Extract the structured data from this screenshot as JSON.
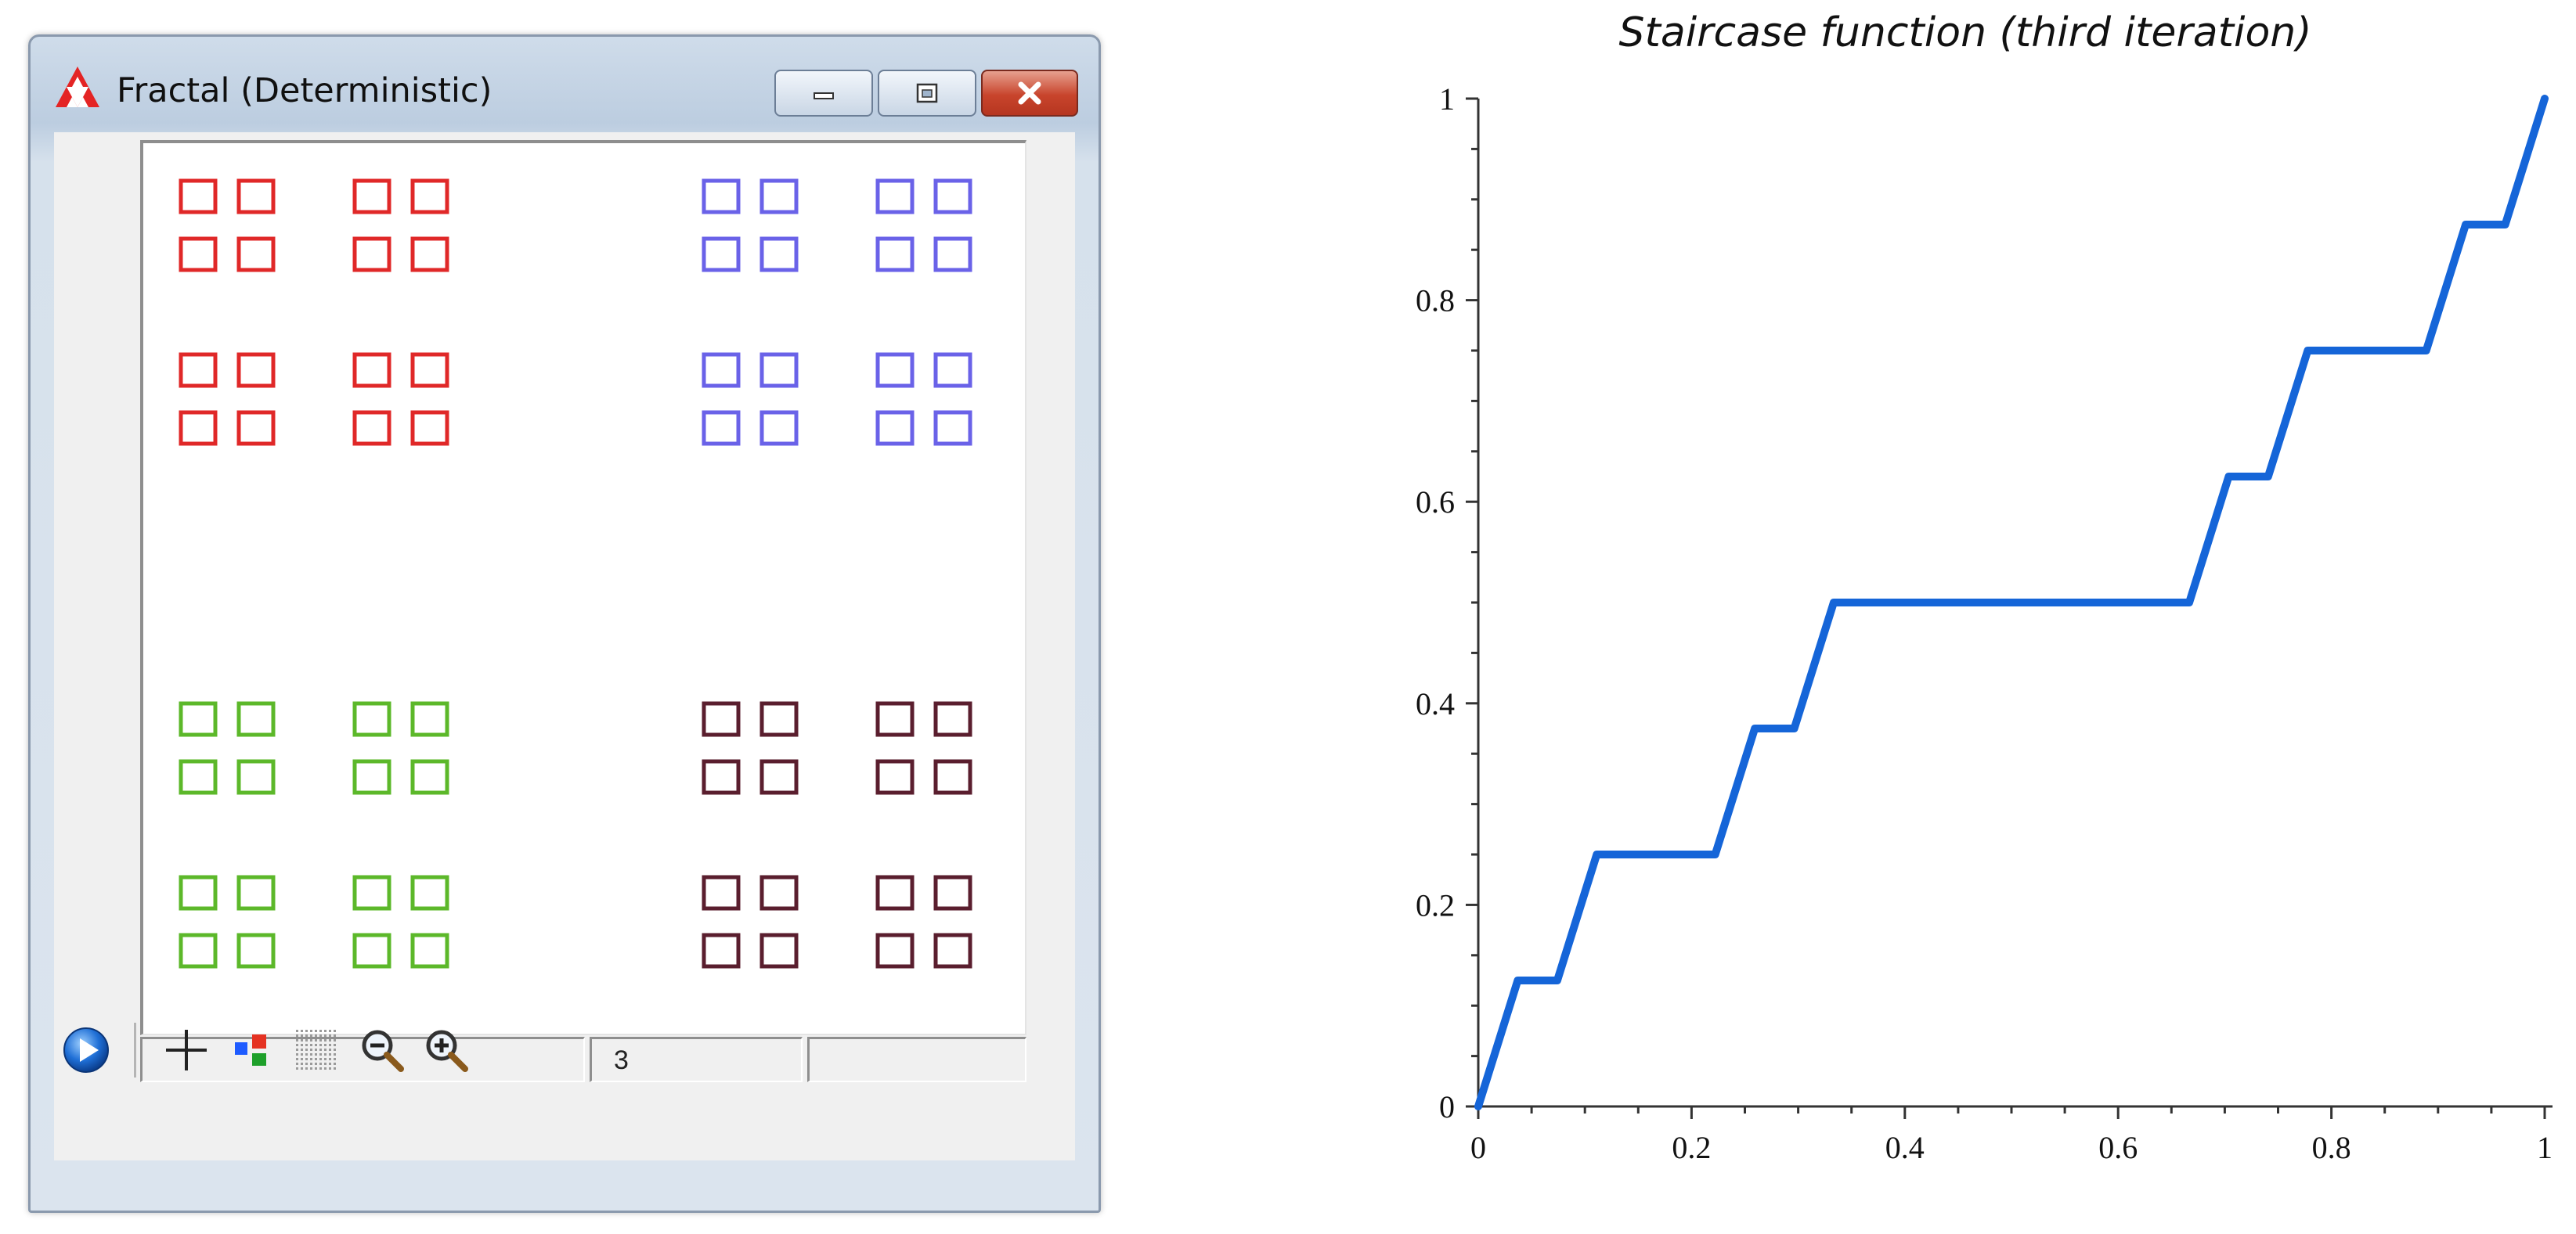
{
  "window": {
    "title": "Fractal (Deterministic)",
    "icon": "sierpinski-triangle-icon",
    "buttons": {
      "minimize": "minimize-icon",
      "maximize": "maximize-icon",
      "close": "close-icon"
    }
  },
  "fractal": {
    "colors": {
      "top_left": "#e02828",
      "top_right": "#6a62e8",
      "bottom_left": "#5cb82a",
      "bottom_right": "#5a1e2e"
    }
  },
  "statusbar": {
    "cells": [
      "",
      "3",
      ""
    ]
  },
  "toolbar": {
    "tools": [
      "play-icon",
      "crosshair-icon",
      "color-squares-icon",
      "grid-icon",
      "zoom-out-icon",
      "zoom-in-icon"
    ]
  },
  "chart_data": {
    "type": "line",
    "title": "Staircase function (third iteration)",
    "xlabel": "",
    "ylabel": "",
    "xlim": [
      0,
      1
    ],
    "ylim": [
      0,
      1
    ],
    "xticks": [
      "0",
      "0.2",
      "0.4",
      "0.6",
      "0.8",
      "1"
    ],
    "yticks": [
      "0",
      "0.2",
      "0.4",
      "0.6",
      "0.8",
      "1"
    ],
    "grid": false,
    "line_color": "#1565d8",
    "series": [
      {
        "x": [
          0,
          0.037,
          0.0741,
          0.1111,
          0.2222,
          0.2593,
          0.2963,
          0.3333,
          0.6667,
          0.7037,
          0.7407,
          0.7778,
          0.8889,
          0.9259,
          0.963,
          1
        ],
        "values": [
          0,
          0.125,
          0.125,
          0.25,
          0.25,
          0.375,
          0.375,
          0.5,
          0.5,
          0.625,
          0.625,
          0.75,
          0.75,
          0.875,
          0.875,
          1
        ]
      }
    ]
  }
}
